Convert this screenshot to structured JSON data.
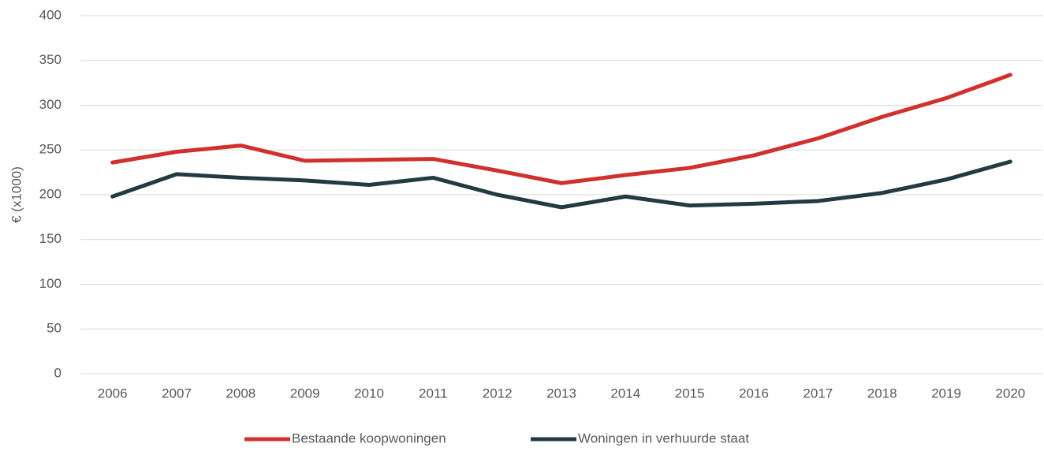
{
  "chart_data": {
    "type": "line",
    "y_label": "€ (x1000)",
    "categories": [
      "2006",
      "2007",
      "2008",
      "2009",
      "2010",
      "2011",
      "2012",
      "2013",
      "2014",
      "2015",
      "2016",
      "2017",
      "2018",
      "2019",
      "2020"
    ],
    "series": [
      {
        "name": "Bestaande koopwoningen",
        "color": "#d0312d",
        "values": [
          236,
          248,
          255,
          238,
          239,
          240,
          227,
          213,
          222,
          230,
          244,
          263,
          287,
          308,
          334
        ]
      },
      {
        "name": "Woningen in verhuurde staat",
        "color": "#243a42",
        "values": [
          198,
          223,
          219,
          216,
          211,
          219,
          200,
          186,
          198,
          188,
          190,
          193,
          202,
          217,
          237
        ]
      }
    ],
    "ylim": [
      0,
      400
    ],
    "yticks": [
      0,
      50,
      100,
      150,
      200,
      250,
      300,
      350,
      400
    ],
    "grid": true,
    "legend": "bottom"
  }
}
